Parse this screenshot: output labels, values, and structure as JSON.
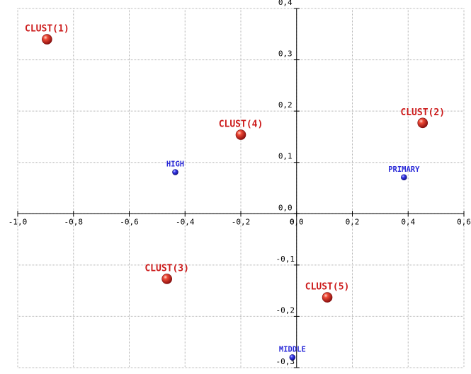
{
  "chart_data": {
    "type": "scatter",
    "title": "",
    "xlabel": "",
    "ylabel": "",
    "xlim": [
      -1.0,
      0.6
    ],
    "ylim": [
      -0.3,
      0.4
    ],
    "grid": true,
    "x_ticks": [
      -1.0,
      -0.8,
      -0.6,
      -0.4,
      -0.2,
      0.0,
      0.2,
      0.4,
      0.6
    ],
    "y_ticks": [
      -0.3,
      -0.2,
      -0.1,
      0.0,
      0.1,
      0.2,
      0.3,
      0.4
    ],
    "x_tick_labels": [
      "-1,0",
      "-0,8",
      "-0,6",
      "-0,4",
      "-0,2",
      "0,0",
      "0,2",
      "0,4",
      "0,6"
    ],
    "y_tick_labels": [
      "-0,3",
      "-0,2",
      "-0,1",
      "0,0",
      "0,1",
      "0,2",
      "0,3",
      "0,4"
    ],
    "origin_label_x": "0",
    "colors": {
      "red": "#cc1a1a",
      "blue": "#2a2ad8",
      "grid": "#b4b4b4",
      "axis": "#000000"
    },
    "series": [
      {
        "color": "red",
        "points": [
          {
            "label": "CLUST(1)",
            "x": -0.895,
            "y": 0.34
          },
          {
            "label": "CLUST(2)",
            "x": 0.452,
            "y": 0.177
          },
          {
            "label": "CLUST(3)",
            "x": -0.465,
            "y": -0.127
          },
          {
            "label": "CLUST(4)",
            "x": -0.2,
            "y": 0.154
          },
          {
            "label": "CLUST(5)",
            "x": 0.11,
            "y": -0.163
          }
        ]
      },
      {
        "color": "blue",
        "points": [
          {
            "label": "HIGH",
            "x": -0.435,
            "y": 0.081
          },
          {
            "label": "PRIMARY",
            "x": 0.385,
            "y": 0.071
          },
          {
            "label": "MIDDLE",
            "x": -0.015,
            "y": -0.28
          }
        ]
      }
    ]
  }
}
